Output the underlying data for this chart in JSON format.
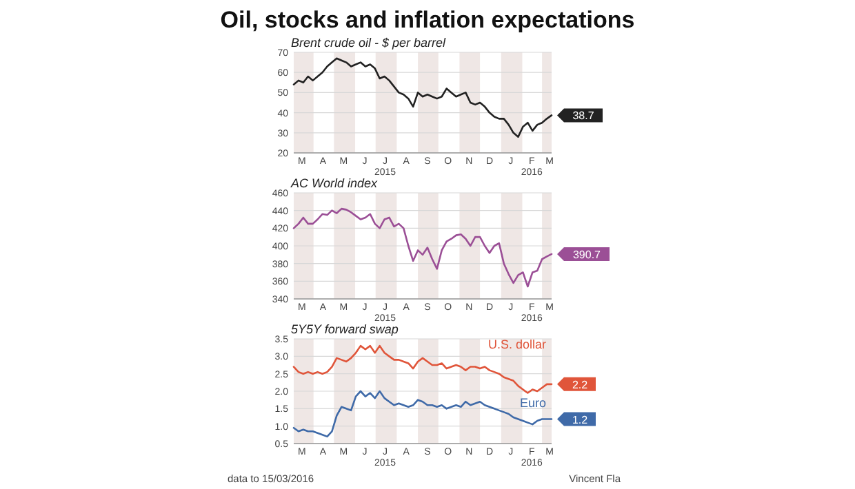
{
  "chart_data": [
    {
      "type": "line",
      "title": "Oil, stocks and inflation expectations",
      "subtitle": "Brent crude oil - $ per barrel",
      "x": [
        "2015-03-03",
        "2015-03-10",
        "2015-03-17",
        "2015-03-24",
        "2015-03-31",
        "2015-04-07",
        "2015-04-14",
        "2015-04-21",
        "2015-04-28",
        "2015-05-05",
        "2015-05-12",
        "2015-05-19",
        "2015-05-26",
        "2015-06-02",
        "2015-06-09",
        "2015-06-16",
        "2015-06-23",
        "2015-06-30",
        "2015-07-07",
        "2015-07-14",
        "2015-07-21",
        "2015-07-28",
        "2015-08-04",
        "2015-08-11",
        "2015-08-18",
        "2015-08-25",
        "2015-09-01",
        "2015-09-08",
        "2015-09-15",
        "2015-09-22",
        "2015-09-29",
        "2015-10-06",
        "2015-10-13",
        "2015-10-20",
        "2015-10-27",
        "2015-11-03",
        "2015-11-10",
        "2015-11-17",
        "2015-11-24",
        "2015-12-01",
        "2015-12-08",
        "2015-12-15",
        "2015-12-22",
        "2015-12-29",
        "2016-01-05",
        "2016-01-12",
        "2016-01-19",
        "2016-01-26",
        "2016-02-02",
        "2016-02-09",
        "2016-02-16",
        "2016-02-23",
        "2016-03-01",
        "2016-03-08",
        "2016-03-15"
      ],
      "series": [
        {
          "color": "#222222",
          "values": [
            54,
            56,
            55,
            58,
            56,
            58,
            60,
            63,
            65,
            67,
            66,
            65,
            63,
            64,
            65,
            63,
            64,
            62,
            57,
            58,
            56,
            53,
            50,
            49,
            47,
            43,
            50,
            48,
            49,
            48,
            47,
            48,
            52,
            50,
            48,
            49,
            50,
            45,
            44,
            45,
            43,
            40,
            38,
            37,
            37,
            34,
            30,
            28,
            33,
            35,
            31,
            34,
            35,
            37,
            38.7
          ]
        }
      ],
      "xlim": [
        "2015-03-03",
        "2016-03-15"
      ],
      "xticks": [
        {
          "value": "2015-03-15",
          "label": "M"
        },
        {
          "value": "2015-04-15",
          "label": "A"
        },
        {
          "value": "2015-05-15",
          "label": "M"
        },
        {
          "value": "2015-06-15",
          "label": "J"
        },
        {
          "value": "2015-07-15",
          "label": "J\n2015"
        },
        {
          "value": "2015-08-15",
          "label": "A"
        },
        {
          "value": "2015-09-15",
          "label": "S"
        },
        {
          "value": "2015-10-15",
          "label": "O"
        },
        {
          "value": "2015-11-15",
          "label": "N"
        },
        {
          "value": "2015-12-15",
          "label": "D"
        },
        {
          "value": "2016-01-15",
          "label": "J"
        },
        {
          "value": "2016-02-15",
          "label": "F\n2016"
        },
        {
          "value": "2016-03-12",
          "label": "M"
        }
      ],
      "ylim": [
        20,
        70
      ],
      "yticks": [
        20,
        30,
        40,
        50,
        60,
        70
      ],
      "grid": "y",
      "bands": [
        {
          "axis": "x",
          "from": "2015-03-03",
          "to": "2015-04-01",
          "color": "#efe7e5"
        },
        {
          "axis": "x",
          "from": "2015-05-01",
          "to": "2015-06-01",
          "color": "#efe7e5"
        },
        {
          "axis": "x",
          "from": "2015-07-01",
          "to": "2015-08-01",
          "color": "#efe7e5"
        },
        {
          "axis": "x",
          "from": "2015-09-01",
          "to": "2015-10-01",
          "color": "#efe7e5"
        },
        {
          "axis": "x",
          "from": "2015-11-01",
          "to": "2015-12-01",
          "color": "#efe7e5"
        },
        {
          "axis": "x",
          "from": "2016-01-01",
          "to": "2016-02-01",
          "color": "#efe7e5"
        },
        {
          "axis": "x",
          "from": "2016-03-01",
          "to": "2016-03-15",
          "color": "#efe7e5"
        }
      ],
      "annotations": [
        {
          "text": "38.7",
          "x": "2016-03-15",
          "y": 38.7
        }
      ]
    },
    {
      "type": "line",
      "title": "AC World index",
      "x": [
        "2015-03-03",
        "2015-03-10",
        "2015-03-17",
        "2015-03-24",
        "2015-03-31",
        "2015-04-07",
        "2015-04-14",
        "2015-04-21",
        "2015-04-28",
        "2015-05-05",
        "2015-05-12",
        "2015-05-19",
        "2015-05-26",
        "2015-06-02",
        "2015-06-09",
        "2015-06-16",
        "2015-06-23",
        "2015-06-30",
        "2015-07-07",
        "2015-07-14",
        "2015-07-21",
        "2015-07-28",
        "2015-08-04",
        "2015-08-11",
        "2015-08-18",
        "2015-08-25",
        "2015-09-01",
        "2015-09-08",
        "2015-09-15",
        "2015-09-22",
        "2015-09-29",
        "2015-10-06",
        "2015-10-13",
        "2015-10-20",
        "2015-10-27",
        "2015-11-03",
        "2015-11-10",
        "2015-11-17",
        "2015-11-24",
        "2015-12-01",
        "2015-12-08",
        "2015-12-15",
        "2015-12-22",
        "2015-12-29",
        "2016-01-05",
        "2016-01-12",
        "2016-01-19",
        "2016-01-26",
        "2016-02-02",
        "2016-02-09",
        "2016-02-16",
        "2016-02-23",
        "2016-03-01",
        "2016-03-08",
        "2016-03-15"
      ],
      "series": [
        {
          "color": "#9b4f96",
          "values": [
            420,
            425,
            432,
            425,
            425,
            430,
            436,
            435,
            440,
            437,
            442,
            441,
            438,
            434,
            430,
            432,
            436,
            425,
            420,
            430,
            432,
            422,
            425,
            420,
            400,
            383,
            395,
            390,
            398,
            385,
            374,
            395,
            405,
            408,
            412,
            413,
            408,
            400,
            410,
            410,
            400,
            392,
            400,
            403,
            380,
            368,
            358,
            367,
            370,
            354,
            370,
            372,
            385,
            388,
            390.7
          ]
        }
      ],
      "xlim": [
        "2015-03-03",
        "2016-03-15"
      ],
      "xticks": [
        {
          "value": "2015-03-15",
          "label": "M"
        },
        {
          "value": "2015-04-15",
          "label": "A"
        },
        {
          "value": "2015-05-15",
          "label": "M"
        },
        {
          "value": "2015-06-15",
          "label": "J"
        },
        {
          "value": "2015-07-15",
          "label": "J\n2015"
        },
        {
          "value": "2015-08-15",
          "label": "A"
        },
        {
          "value": "2015-09-15",
          "label": "S"
        },
        {
          "value": "2015-10-15",
          "label": "O"
        },
        {
          "value": "2015-11-15",
          "label": "N"
        },
        {
          "value": "2015-12-15",
          "label": "D"
        },
        {
          "value": "2016-01-15",
          "label": "J"
        },
        {
          "value": "2016-02-15",
          "label": "F\n2016"
        },
        {
          "value": "2016-03-12",
          "label": "M"
        }
      ],
      "ylim": [
        340,
        460
      ],
      "yticks": [
        340,
        360,
        380,
        400,
        420,
        440,
        460
      ],
      "grid": "y",
      "bands": [
        {
          "axis": "x",
          "from": "2015-03-03",
          "to": "2015-04-01",
          "color": "#efe7e5"
        },
        {
          "axis": "x",
          "from": "2015-05-01",
          "to": "2015-06-01",
          "color": "#efe7e5"
        },
        {
          "axis": "x",
          "from": "2015-07-01",
          "to": "2015-08-01",
          "color": "#efe7e5"
        },
        {
          "axis": "x",
          "from": "2015-09-01",
          "to": "2015-10-01",
          "color": "#efe7e5"
        },
        {
          "axis": "x",
          "from": "2015-11-01",
          "to": "2015-12-01",
          "color": "#efe7e5"
        },
        {
          "axis": "x",
          "from": "2016-01-01",
          "to": "2016-02-01",
          "color": "#efe7e5"
        },
        {
          "axis": "x",
          "from": "2016-03-01",
          "to": "2016-03-15",
          "color": "#efe7e5"
        }
      ],
      "annotations": [
        {
          "text": "390.7",
          "x": "2016-03-15",
          "y": 390.7
        }
      ]
    },
    {
      "type": "line",
      "title": "5Y5Y forward swap",
      "x": [
        "2015-03-03",
        "2015-03-10",
        "2015-03-17",
        "2015-03-24",
        "2015-03-31",
        "2015-04-07",
        "2015-04-14",
        "2015-04-21",
        "2015-04-28",
        "2015-05-05",
        "2015-05-12",
        "2015-05-19",
        "2015-05-26",
        "2015-06-02",
        "2015-06-09",
        "2015-06-16",
        "2015-06-23",
        "2015-06-30",
        "2015-07-07",
        "2015-07-14",
        "2015-07-21",
        "2015-07-28",
        "2015-08-04",
        "2015-08-11",
        "2015-08-18",
        "2015-08-25",
        "2015-09-01",
        "2015-09-08",
        "2015-09-15",
        "2015-09-22",
        "2015-09-29",
        "2015-10-06",
        "2015-10-13",
        "2015-10-20",
        "2015-10-27",
        "2015-11-03",
        "2015-11-10",
        "2015-11-17",
        "2015-11-24",
        "2015-12-01",
        "2015-12-08",
        "2015-12-15",
        "2015-12-22",
        "2015-12-29",
        "2016-01-05",
        "2016-01-12",
        "2016-01-19",
        "2016-01-26",
        "2016-02-02",
        "2016-02-09",
        "2016-02-16",
        "2016-02-23",
        "2016-03-01",
        "2016-03-08",
        "2016-03-15"
      ],
      "series": [
        {
          "name": "U.S. dollar",
          "color": "#e0553a",
          "values": [
            2.7,
            2.55,
            2.5,
            2.55,
            2.5,
            2.55,
            2.5,
            2.55,
            2.7,
            2.95,
            2.9,
            2.85,
            2.95,
            3.1,
            3.3,
            3.2,
            3.3,
            3.1,
            3.3,
            3.1,
            3.0,
            2.9,
            2.9,
            2.85,
            2.8,
            2.65,
            2.85,
            2.95,
            2.85,
            2.75,
            2.75,
            2.8,
            2.65,
            2.7,
            2.75,
            2.7,
            2.6,
            2.7,
            2.7,
            2.65,
            2.7,
            2.6,
            2.55,
            2.5,
            2.4,
            2.35,
            2.3,
            2.15,
            2.05,
            1.95,
            2.05,
            2.0,
            2.1,
            2.2,
            2.2
          ]
        },
        {
          "name": "Euro",
          "color": "#3f6aa8",
          "values": [
            0.95,
            0.85,
            0.9,
            0.85,
            0.85,
            0.8,
            0.75,
            0.7,
            0.85,
            1.3,
            1.55,
            1.5,
            1.45,
            1.85,
            2.0,
            1.85,
            1.95,
            1.8,
            2.0,
            1.8,
            1.7,
            1.6,
            1.65,
            1.6,
            1.55,
            1.6,
            1.75,
            1.7,
            1.6,
            1.6,
            1.55,
            1.6,
            1.5,
            1.55,
            1.6,
            1.55,
            1.7,
            1.6,
            1.65,
            1.7,
            1.6,
            1.55,
            1.5,
            1.45,
            1.4,
            1.35,
            1.25,
            1.2,
            1.15,
            1.1,
            1.05,
            1.15,
            1.2,
            1.2,
            1.2
          ]
        }
      ],
      "xlim": [
        "2015-03-03",
        "2016-03-15"
      ],
      "xticks": [
        {
          "value": "2015-03-15",
          "label": "M"
        },
        {
          "value": "2015-04-15",
          "label": "A"
        },
        {
          "value": "2015-05-15",
          "label": "M"
        },
        {
          "value": "2015-06-15",
          "label": "J"
        },
        {
          "value": "2015-07-15",
          "label": "J\n2015"
        },
        {
          "value": "2015-08-15",
          "label": "A"
        },
        {
          "value": "2015-09-15",
          "label": "S"
        },
        {
          "value": "2015-10-15",
          "label": "O"
        },
        {
          "value": "2015-11-15",
          "label": "N"
        },
        {
          "value": "2015-12-15",
          "label": "D"
        },
        {
          "value": "2016-01-15",
          "label": "J"
        },
        {
          "value": "2016-02-15",
          "label": "F\n2016"
        },
        {
          "value": "2016-03-12",
          "label": "M"
        }
      ],
      "ylim": [
        0.5,
        3.5
      ],
      "yticks": [
        0.5,
        {
          "value": 1,
          "label": "1.0"
        },
        1.5,
        {
          "value": 2,
          "label": "2.0"
        },
        2.5,
        {
          "value": 3,
          "label": "3.0"
        },
        3.5
      ],
      "grid": "y",
      "bands": [
        {
          "axis": "x",
          "from": "2015-03-03",
          "to": "2015-04-01",
          "color": "#efe7e5"
        },
        {
          "axis": "x",
          "from": "2015-05-01",
          "to": "2015-06-01",
          "color": "#efe7e5"
        },
        {
          "axis": "x",
          "from": "2015-07-01",
          "to": "2015-08-01",
          "color": "#efe7e5"
        },
        {
          "axis": "x",
          "from": "2015-09-01",
          "to": "2015-10-01",
          "color": "#efe7e5"
        },
        {
          "axis": "x",
          "from": "2015-11-01",
          "to": "2015-12-01",
          "color": "#efe7e5"
        },
        {
          "axis": "x",
          "from": "2016-01-01",
          "to": "2016-02-01",
          "color": "#efe7e5"
        },
        {
          "axis": "x",
          "from": "2016-03-01",
          "to": "2016-03-15",
          "color": "#efe7e5"
        }
      ],
      "annotations": [
        {
          "text": "2.2",
          "x": "2016-03-15",
          "y": 2.2
        },
        {
          "text": "1.2",
          "x": "2016-03-15",
          "y": 1.2
        },
        "data to 15/03/2016",
        "Vincent Fla"
      ]
    }
  ]
}
